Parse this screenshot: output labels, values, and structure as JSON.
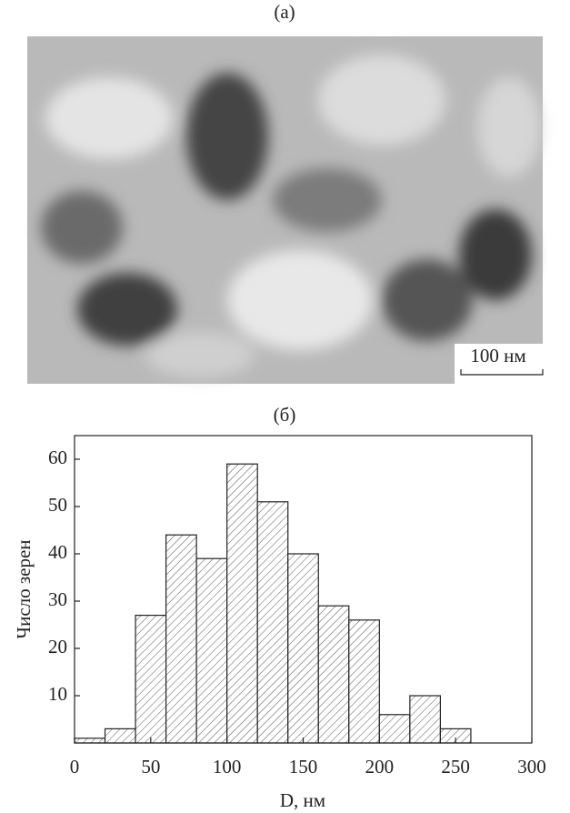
{
  "image": {
    "label": "(a)",
    "scale_bar": "100 нм"
  },
  "chart_data": {
    "type": "histogram",
    "title": "(б)",
    "bins": [
      0,
      20,
      40,
      60,
      80,
      100,
      120,
      140,
      160,
      180,
      200,
      220,
      240,
      260
    ],
    "values": [
      1,
      3,
      27,
      44,
      39,
      59,
      51,
      40,
      29,
      26,
      6,
      10,
      3
    ],
    "xlim": [
      0,
      300
    ],
    "xticks": [
      0,
      50,
      100,
      150,
      200,
      250,
      300
    ],
    "ylim": [
      0,
      65
    ],
    "yticks": [
      10,
      20,
      30,
      40,
      50,
      60
    ],
    "xlabel": "D, нм",
    "ylabel": "Число зерен"
  }
}
